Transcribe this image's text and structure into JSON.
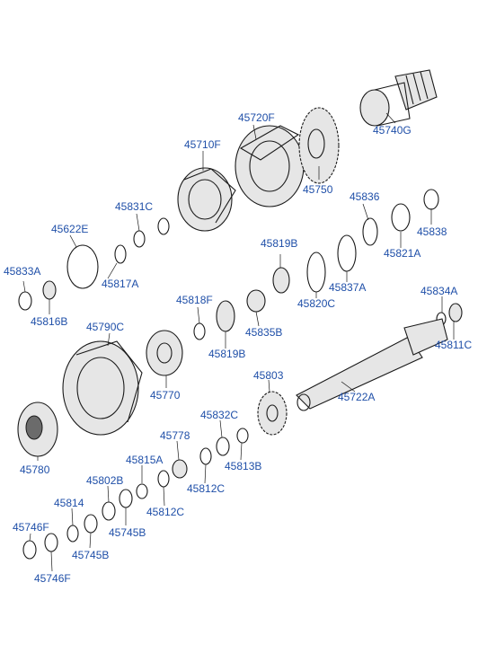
{
  "diagram": {
    "labels": [
      "45740G",
      "45720F",
      "45710F",
      "45750",
      "45836",
      "45838",
      "45831C",
      "45622E",
      "45819B",
      "45821A",
      "45833A",
      "45817A",
      "45837A",
      "45820C",
      "45816B",
      "45818F",
      "45834A",
      "45835B",
      "45790C",
      "45819B",
      "45811C",
      "45803",
      "45722A",
      "45770",
      "45832C",
      "45778",
      "45780",
      "45815A",
      "45813B",
      "45802B",
      "45812C",
      "45812C",
      "45814",
      "45745B",
      "45746F",
      "45745B",
      "45746F"
    ]
  }
}
